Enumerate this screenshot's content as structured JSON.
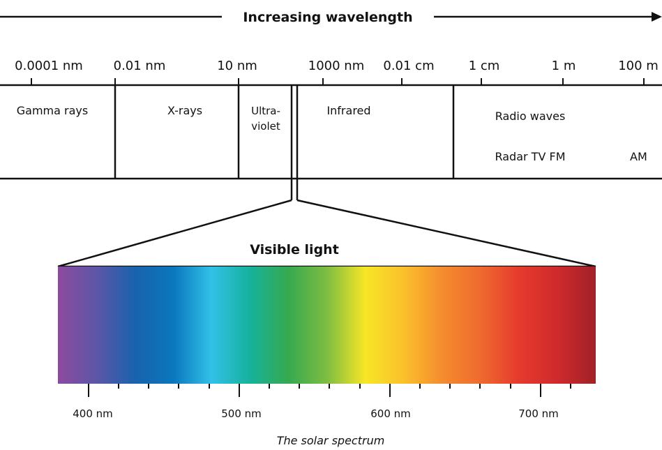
{
  "title": "Increasing wavelength",
  "scale_labels": [
    "0.0001 nm",
    "0.01 nm",
    "10 nm",
    "1000 nm",
    "0.01 cm",
    "1 cm",
    "1 m",
    "100 m"
  ],
  "bands": {
    "gamma": "Gamma rays",
    "xray": "X-rays",
    "uv_line1": "Ultra-",
    "uv_line2": "violet",
    "infrared": "Infrared",
    "radio": "Radio waves",
    "radar_tv_fm": "Radar TV FM",
    "am": "AM"
  },
  "visible": {
    "title": "Visible light",
    "labels": [
      "400 nm",
      "500 nm",
      "600 nm",
      "700 nm"
    ],
    "gradient_colors": [
      "#8d4a9e",
      "#5d56a6",
      "#1a62ad",
      "#0a77bd",
      "#32c0e8",
      "#16b29c",
      "#36a94f",
      "#7dbd42",
      "#f7e626",
      "#fbc02b",
      "#f58c2e",
      "#ef6a2f",
      "#e63a2d",
      "#cf2a2c",
      "#a12128"
    ]
  },
  "caption": "The solar spectrum",
  "colors": {
    "line": "#111111",
    "background": "#ffffff"
  }
}
